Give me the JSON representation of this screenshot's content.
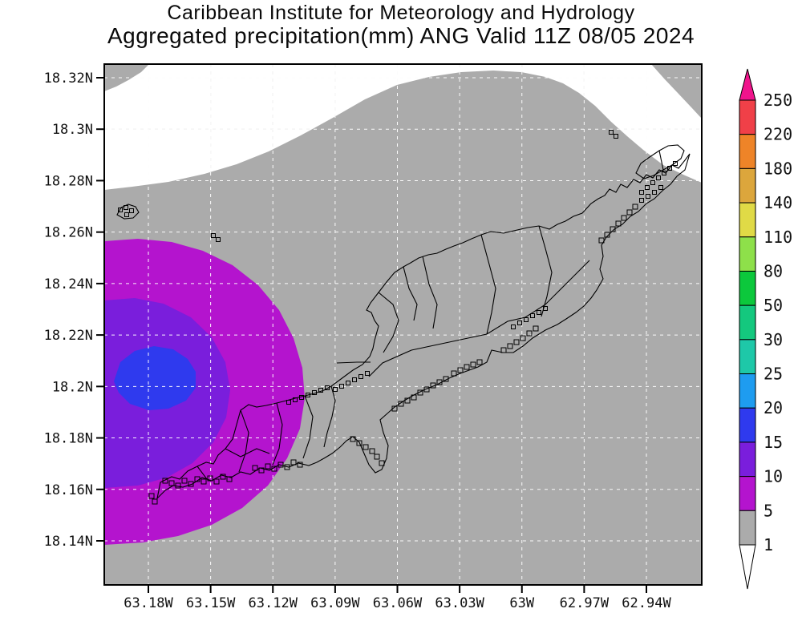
{
  "header": {
    "line1": "Caribbean Institute for Meteorology and Hydrology",
    "line2": "Aggregated precipitation(mm) ANG Valid 11Z 08/05 2024"
  },
  "map": {
    "region": "ANG",
    "x_axis": {
      "tick_labels": [
        "63.18W",
        "63.15W",
        "63.12W",
        "63.09W",
        "63.06W",
        "63.03W",
        "63W",
        "62.97W",
        "62.94W"
      ]
    },
    "y_axis": {
      "tick_labels": [
        "18.32N",
        "18.3N",
        "18.28N",
        "18.26N",
        "18.24N",
        "18.22N",
        "18.2N",
        "18.18N",
        "18.16N",
        "18.14N"
      ]
    },
    "field": {
      "units": "mm",
      "bands_shown": [
        {
          "range": "< 1",
          "color": "#FFFFFF"
        },
        {
          "range": "1-5",
          "color": "#ABABAB"
        },
        {
          "range": "5-10",
          "color": "#B414CE"
        },
        {
          "range": "10-15",
          "color": "#7A1EDC"
        },
        {
          "range": "15-20",
          "color": "#2F3AEE"
        }
      ],
      "max_band_center": {
        "lon": "63.17W",
        "lat": "18.2N"
      }
    }
  },
  "colorbar": {
    "tick_labels": [
      "250",
      "220",
      "180",
      "140",
      "110",
      "80",
      "50",
      "30",
      "25",
      "20",
      "15",
      "10",
      "5",
      "1"
    ],
    "segment_colors_top_to_bottom": [
      "#F04048",
      "#EE8428",
      "#DCA63C",
      "#E0DA46",
      "#8EE04A",
      "#0CC83C",
      "#14C87E",
      "#1EC8A8",
      "#1E9CF0",
      "#2F3AEE",
      "#7A1EDC",
      "#B414CE",
      "#ABABAB"
    ],
    "top_arrow_color": "#F0148C",
    "bottom_arrow_color": "#FFFFFF"
  },
  "palette": {
    "coastline": "#000000",
    "grid_on_white": "#C9C9C9",
    "grid_on_shaded": "#FFFFFF",
    "axis": "#000000",
    "text": "#111111"
  }
}
